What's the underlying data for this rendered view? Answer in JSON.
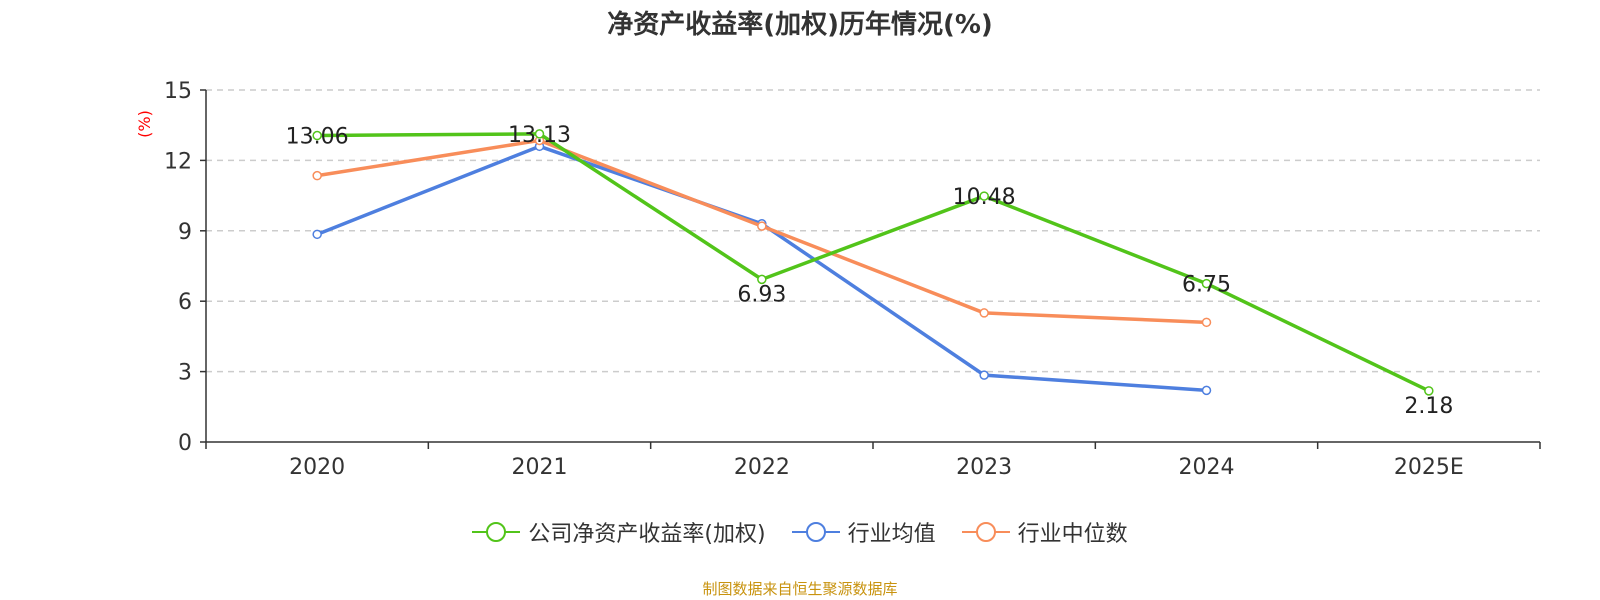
{
  "chart_data": {
    "type": "line",
    "title": "净资产收益率(加权)历年情况(%)",
    "ylabel": "(%)",
    "xlabel": "",
    "categories": [
      "2020",
      "2021",
      "2022",
      "2023",
      "2024",
      "2025E"
    ],
    "ylim": [
      0,
      15
    ],
    "yticks": [
      0,
      3,
      6,
      9,
      12,
      15
    ],
    "grid": true,
    "legend_position": "bottom",
    "series": [
      {
        "name": "公司净资产收益率(加权)",
        "color": "#52c41a",
        "values": [
          13.06,
          13.13,
          6.93,
          10.48,
          6.75,
          2.18
        ],
        "labels": [
          "13.06",
          "13.13",
          "6.93",
          "10.48",
          "6.75",
          "2.18"
        ]
      },
      {
        "name": "行业均值",
        "color": "#4e7fdf",
        "values": [
          8.85,
          12.6,
          9.3,
          2.85,
          2.2,
          null
        ]
      },
      {
        "name": "行业中位数",
        "color": "#f88d5a",
        "values": [
          11.35,
          12.85,
          9.2,
          5.5,
          5.1,
          null
        ]
      }
    ]
  },
  "source": "制图数据来自恒生聚源数据库"
}
